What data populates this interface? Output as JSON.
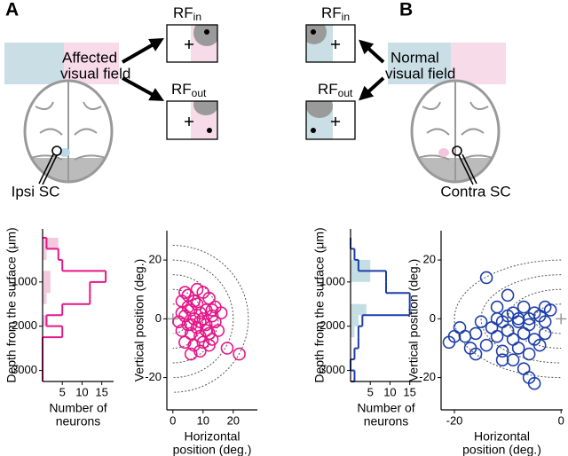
{
  "panel_labels": [
    "A",
    "B"
  ],
  "diagram_a": {
    "rf_in": {
      "main": "RF",
      "sub": "in"
    },
    "rf_out": {
      "main": "RF",
      "sub": "out"
    },
    "field_label": [
      "Affected",
      "visual field"
    ],
    "sc_label": "Ipsi SC"
  },
  "diagram_b": {
    "rf_in": {
      "main": "RF",
      "sub": "in"
    },
    "rf_out": {
      "main": "RF",
      "sub": "out"
    },
    "field_label": [
      "Normal",
      "visual field"
    ],
    "sc_label": "Contra SC"
  },
  "chart_data": [
    {
      "type": "histogram",
      "ylabel": "Depth from the surface (μm)",
      "xlabel": [
        "Number of",
        "neurons"
      ],
      "bins": [
        0,
        250,
        500,
        750,
        1000,
        1250,
        1500,
        1750,
        2000,
        2250,
        2500,
        2750,
        3000,
        3250
      ],
      "series": [
        {
          "style": "fill",
          "color": "#f3cadd",
          "values": [
            4,
            1,
            0,
            2,
            2,
            1,
            0,
            1,
            0,
            0,
            0,
            0,
            0
          ]
        },
        {
          "style": "step",
          "color": "#e6178a",
          "values": [
            1,
            4,
            5,
            16,
            12,
            12,
            5,
            1,
            5,
            0,
            0,
            0,
            0
          ]
        }
      ],
      "xlim": [
        0,
        18
      ],
      "xticks": [
        5,
        10,
        15
      ],
      "ylim": [
        -200,
        3250
      ],
      "yticks": [
        1000,
        2000,
        3000
      ],
      "invert_y": true
    },
    {
      "type": "scatter",
      "ylabel": "Vertical position (deg.)",
      "xlabel": [
        "Horizontal",
        "position (deg.)"
      ],
      "color": "#e6178a",
      "x": [
        3,
        5,
        8,
        10,
        12,
        6,
        9,
        11,
        14,
        4,
        7,
        10,
        13,
        2,
        5,
        8,
        11,
        14,
        3,
        6,
        9,
        12,
        15,
        4,
        7,
        10,
        13,
        6,
        9,
        18,
        22,
        5,
        8,
        11,
        7,
        3,
        16,
        9,
        6,
        12,
        13,
        4
      ],
      "values": [
        6,
        8,
        5,
        9,
        7,
        3,
        2,
        3,
        4,
        1,
        0,
        0,
        1,
        -1,
        -2,
        -3,
        -2,
        -1,
        -4,
        -5,
        -6,
        -5,
        -4,
        -8,
        -9,
        -8,
        -7,
        -12,
        -11,
        -10,
        -12,
        4,
        10,
        -4,
        6,
        2,
        2,
        -1,
        -2,
        -9,
        3,
        9
      ],
      "arc_radii": [
        5,
        10,
        15,
        20,
        25
      ],
      "arc_side": "right",
      "xlim": [
        -2,
        28
      ],
      "xticks": [
        0,
        10,
        20
      ],
      "ylim": [
        -31,
        30
      ],
      "yticks": [
        -20,
        0,
        20
      ]
    },
    {
      "type": "histogram",
      "ylabel": "Depth from the surface (μm)",
      "xlabel": [
        "Number of",
        "neurons"
      ],
      "bins": [
        0,
        250,
        500,
        750,
        1000,
        1250,
        1500,
        1750,
        2000,
        2250,
        2500,
        2750,
        3000,
        3250
      ],
      "series": [
        {
          "style": "fill",
          "color": "#c4dee4",
          "values": [
            0,
            0,
            5,
            5,
            0,
            0,
            4,
            2,
            1,
            0,
            0,
            0,
            0
          ]
        },
        {
          "style": "step",
          "color": "#1f3fa8",
          "values": [
            0,
            1,
            2,
            9,
            9,
            15,
            15,
            3,
            2,
            2,
            1,
            0,
            1
          ]
        }
      ],
      "xlim": [
        0,
        18
      ],
      "xticks": [
        5,
        10,
        15
      ],
      "ylim": [
        -200,
        3250
      ],
      "yticks": [
        1000,
        2000,
        3000
      ],
      "invert_y": true
    },
    {
      "type": "scatter",
      "ylabel": "Vertical position (deg.)",
      "xlabel": [
        "Horizontal",
        "position (deg.)"
      ],
      "color": "#1f3fa8",
      "x": [
        -14,
        -10,
        -7,
        -5,
        -3,
        -12,
        -9,
        -8,
        -6,
        -11,
        -13,
        -10,
        -7,
        -5,
        -3,
        -9,
        -12,
        -16,
        -18,
        -20,
        -21,
        -19,
        -17,
        -14,
        -11,
        -8,
        -6,
        -4,
        -9,
        -7,
        -6,
        -5,
        -15,
        -12,
        -10,
        -8,
        -6,
        -4,
        -3,
        -11,
        -16,
        -2
      ],
      "values": [
        14,
        8,
        4,
        2,
        4,
        4,
        2,
        -1,
        -2,
        -1,
        -3,
        -4,
        -5,
        -7,
        -5,
        -7,
        -6,
        -5,
        -6,
        -6,
        -8,
        -3,
        -10,
        -9,
        -11,
        -10,
        -12,
        -9,
        -14,
        -17,
        -20,
        -22,
        -1,
        0,
        1,
        0,
        0,
        1,
        -1,
        -14,
        -12,
        3
      ],
      "arc_radii": [
        5,
        10,
        15,
        20
      ],
      "arc_side": "left",
      "xlim": [
        -22.5,
        0.3
      ],
      "xticks": [
        -20,
        0
      ],
      "ylim": [
        -31,
        30
      ],
      "yticks": [
        -20,
        0,
        20
      ]
    }
  ]
}
